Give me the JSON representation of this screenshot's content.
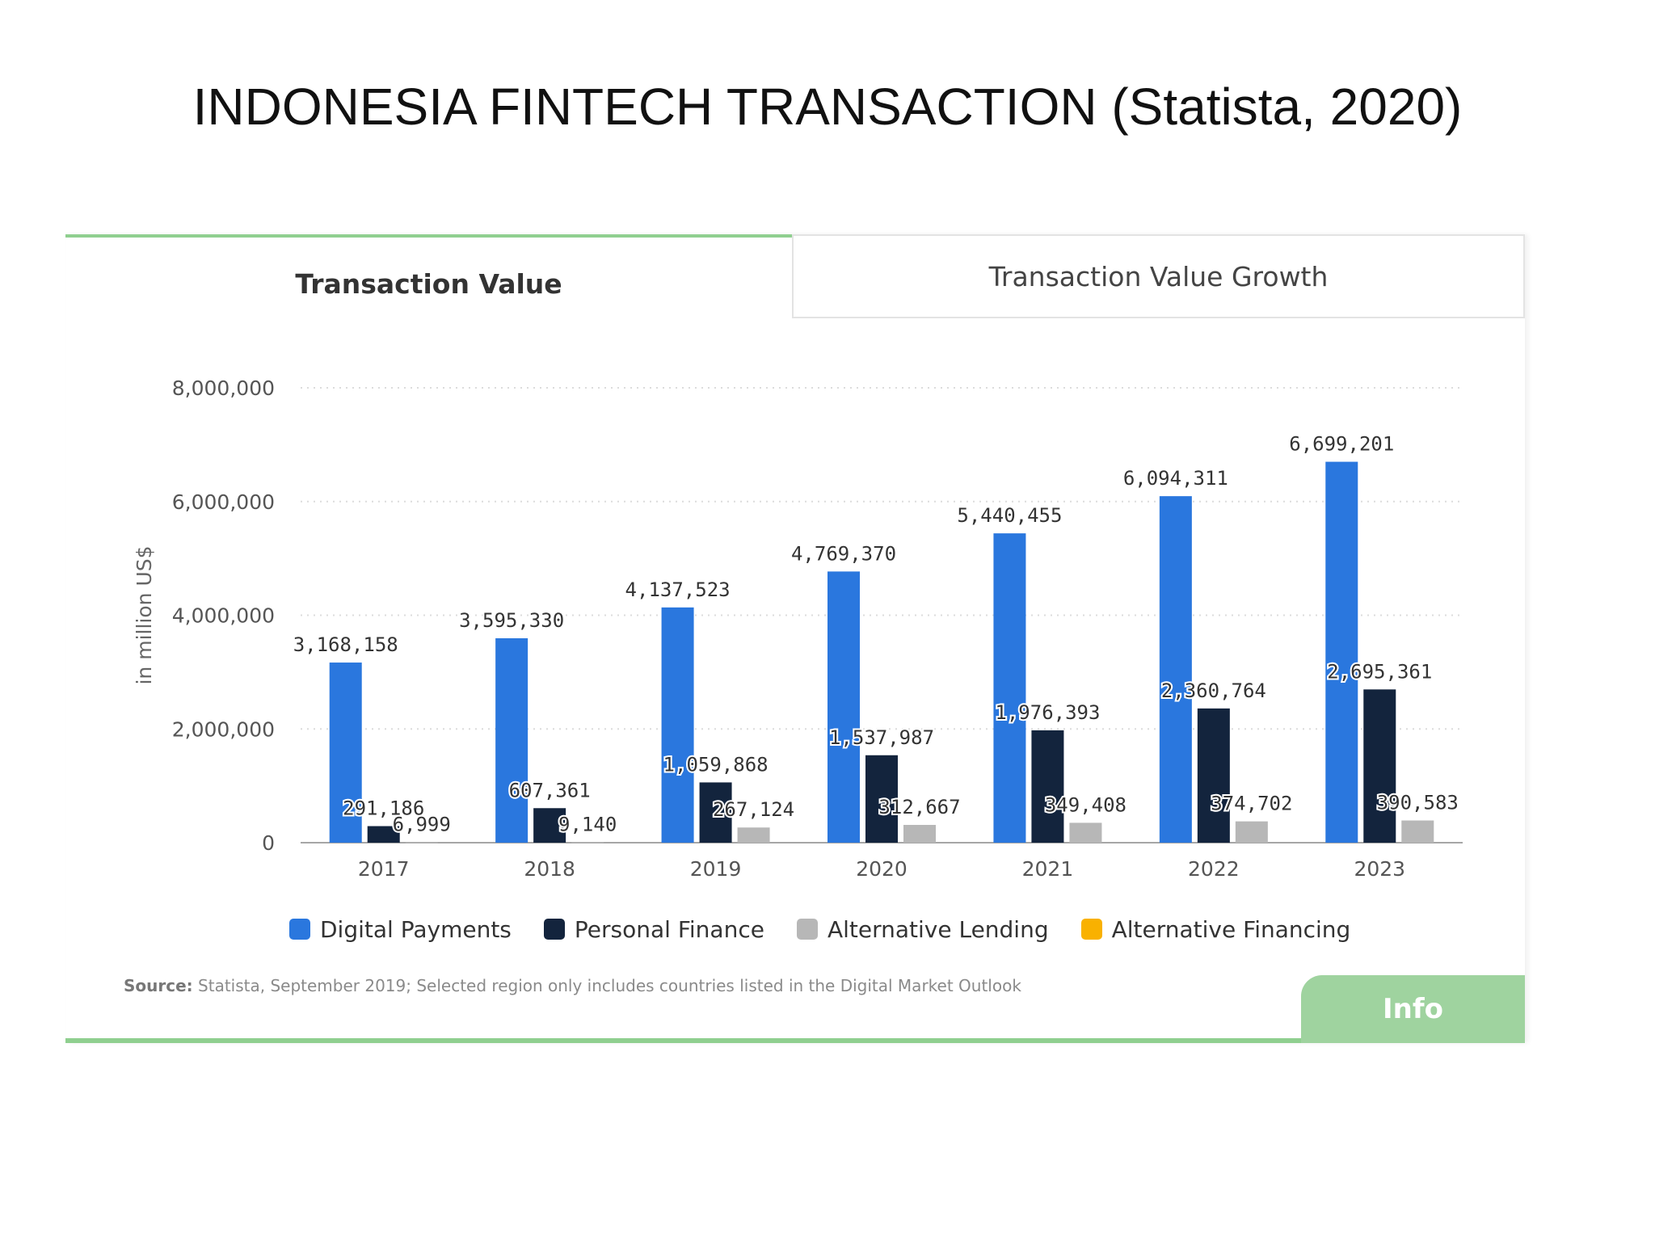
{
  "slide": {
    "title": "INDONESIA FINTECH TRANSACTION (Statista, 2020)"
  },
  "tabs": {
    "active": "Transaction Value",
    "inactive": "Transaction Value Growth"
  },
  "source": {
    "label": "Source:",
    "text": "Statista, September 2019; Selected region only includes countries listed in the Digital Market Outlook"
  },
  "info_label": "Info",
  "colors": {
    "digital_payments": "#2a77de",
    "personal_finance": "#13243d",
    "alternative_lending": "#b7b7b7",
    "alternative_financing": "#f9b100",
    "accent": "#8fcf8f"
  },
  "chart_data": {
    "type": "bar",
    "ylabel": "in million US$",
    "ylim": [
      0,
      8000000
    ],
    "yticks": [
      0,
      2000000,
      4000000,
      6000000,
      8000000
    ],
    "ytick_labels": [
      "0",
      "2,000,000",
      "4,000,000",
      "6,000,000",
      "8,000,000"
    ],
    "grid": true,
    "legend_position": "bottom",
    "categories": [
      "2017",
      "2018",
      "2019",
      "2020",
      "2021",
      "2022",
      "2023"
    ],
    "series": [
      {
        "name": "Digital Payments",
        "color": "#2a77de",
        "values": [
          3168158,
          3595330,
          4137523,
          4769370,
          5440455,
          6094311,
          6699201
        ],
        "labels": [
          "3,168,158",
          "3,595,330",
          "4,137,523",
          "4,769,370",
          "5,440,455",
          "6,094,311",
          "6,699,201"
        ]
      },
      {
        "name": "Personal Finance",
        "color": "#13243d",
        "values": [
          291186,
          607361,
          1059868,
          1537987,
          1976393,
          2360764,
          2695361
        ],
        "labels": [
          "291,186",
          "607,361",
          "1,059,868",
          "1,537,987",
          "1,976,393",
          "2,360,764",
          "2,695,361"
        ]
      },
      {
        "name": "Alternative Lending",
        "color": "#b7b7b7",
        "values": [
          6999,
          9140,
          267124,
          312667,
          349408,
          374702,
          390583
        ],
        "labels": [
          "6,999",
          "9,140",
          "267,124",
          "312,667",
          "349,408",
          "374,702",
          "390,583"
        ]
      },
      {
        "name": "Alternative Financing",
        "color": "#f9b100",
        "values": [
          null,
          null,
          null,
          null,
          null,
          null,
          null
        ],
        "labels": []
      }
    ]
  }
}
